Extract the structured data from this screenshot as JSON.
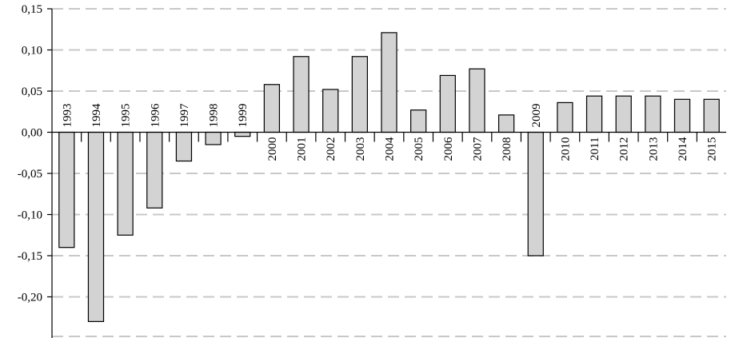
{
  "chart_data": {
    "type": "bar",
    "categories": [
      "1993",
      "1994",
      "1995",
      "1996",
      "1997",
      "1998",
      "1999",
      "2000",
      "2001",
      "2002",
      "2003",
      "2004",
      "2005",
      "2006",
      "2007",
      "2008",
      "2009",
      "2010",
      "2011",
      "2012",
      "2013",
      "2014",
      "2015"
    ],
    "values": [
      -0.14,
      -0.23,
      -0.125,
      -0.092,
      -0.035,
      -0.015,
      -0.005,
      0.058,
      0.092,
      0.052,
      0.092,
      0.121,
      0.027,
      0.069,
      0.077,
      0.021,
      -0.15,
      0.036,
      0.044,
      0.044,
      0.044,
      0.04,
      0.04
    ],
    "ylim": [
      -0.25,
      0.15
    ],
    "yticks": [
      -0.2,
      -0.15,
      -0.1,
      -0.05,
      0.0,
      0.05,
      0.1,
      0.15
    ],
    "ytick_labels": [
      "-0,20",
      "-0,15",
      "-0,10",
      "-0,05",
      "0,00",
      "0,05",
      "0,10",
      "0,15"
    ],
    "grid": true,
    "colors": {
      "bar_fill": "#d3d3d3",
      "bar_stroke": "#000000",
      "grid": "#c8c8c8"
    }
  }
}
